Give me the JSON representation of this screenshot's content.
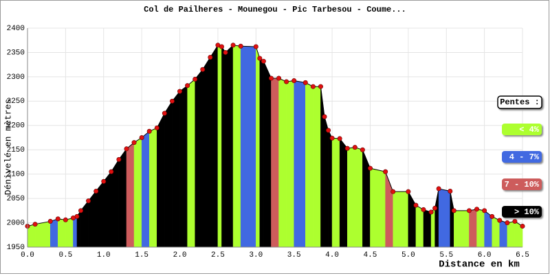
{
  "chart_data": {
    "type": "profile",
    "title": "Col de Pailheres - Mounegou - Pic Tarbesou - Coume...",
    "x_label": "Distance en km",
    "y_label": "Dénivelé en mètres",
    "x": [
      0,
      0.1,
      0.3,
      0.4,
      0.5,
      0.6,
      0.65,
      0.7,
      0.8,
      0.9,
      1.0,
      1.1,
      1.2,
      1.3,
      1.4,
      1.5,
      1.6,
      1.7,
      1.8,
      1.9,
      2.0,
      2.1,
      2.2,
      2.3,
      2.4,
      2.5,
      2.55,
      2.6,
      2.7,
      2.8,
      3.0,
      3.05,
      3.1,
      3.2,
      3.3,
      3.4,
      3.5,
      3.65,
      3.75,
      3.85,
      3.9,
      3.95,
      4.0,
      4.1,
      4.2,
      4.3,
      4.4,
      4.5,
      4.7,
      4.8,
      5.0,
      5.1,
      5.2,
      5.3,
      5.35,
      5.4,
      5.55,
      5.6,
      5.8,
      5.9,
      6.0,
      6.1,
      6.2,
      6.3,
      6.4,
      6.5
    ],
    "values": [
      1993,
      1997,
      2003,
      2008,
      2006,
      2010,
      2013,
      2025,
      2045,
      2065,
      2085,
      2105,
      2130,
      2152,
      2165,
      2175,
      2188,
      2195,
      2225,
      2250,
      2270,
      2282,
      2295,
      2315,
      2340,
      2365,
      2362,
      2350,
      2365,
      2363,
      2362,
      2338,
      2332,
      2297,
      2297,
      2290,
      2292,
      2288,
      2280,
      2280,
      2218,
      2190,
      2174,
      2173,
      2153,
      2155,
      2150,
      2112,
      2105,
      2064,
      2064,
      2036,
      2027,
      2022,
      2030,
      2070,
      2065,
      2025,
      2025,
      2028,
      2025,
      2013,
      2005,
      2000,
      2003,
      1993
    ],
    "segment_classes": [
      0,
      0,
      1,
      0,
      0,
      1,
      3,
      3,
      3,
      3,
      3,
      3,
      3,
      2,
      0,
      1,
      0,
      3,
      3,
      3,
      3,
      0,
      3,
      3,
      3,
      0,
      3,
      3,
      0,
      1,
      0,
      3,
      3,
      2,
      0,
      0,
      1,
      0,
      0,
      3,
      3,
      3,
      0,
      3,
      0,
      0,
      3,
      0,
      2,
      0,
      3,
      0,
      3,
      0,
      3,
      1,
      3,
      0,
      2,
      0,
      1,
      0,
      1,
      0,
      0
    ],
    "point_color": "#e01010",
    "line_color": "#000000",
    "xlim": [
      0,
      6.5
    ],
    "ylim": [
      1950,
      2400
    ],
    "xticks": [
      {
        "value": 0,
        "label": "0.0"
      },
      0.5,
      {
        "value": 1,
        "label": "1.0"
      },
      1.5,
      {
        "value": 2,
        "label": "2.0"
      },
      2.5,
      {
        "value": 3,
        "label": "3.0"
      },
      3.5,
      {
        "value": 4,
        "label": "4.0"
      },
      4.5,
      {
        "value": 5,
        "label": "5.0"
      },
      5.5,
      {
        "value": 6,
        "label": "6.0"
      },
      6.5
    ],
    "yticks": [
      1950,
      2000,
      2050,
      2100,
      2150,
      2200,
      2250,
      2300,
      2350,
      2400
    ],
    "grid": true,
    "legend": {
      "title": "Pentes :",
      "entries": [
        {
          "label": "< 4%",
          "color": "#adff2f"
        },
        {
          "label": "4 - 7%",
          "color": "#4169e1"
        },
        {
          "label": "7 - 10%",
          "color": "#cd5c5c"
        },
        {
          "label": "> 10%",
          "color": "#000000"
        }
      ]
    }
  }
}
